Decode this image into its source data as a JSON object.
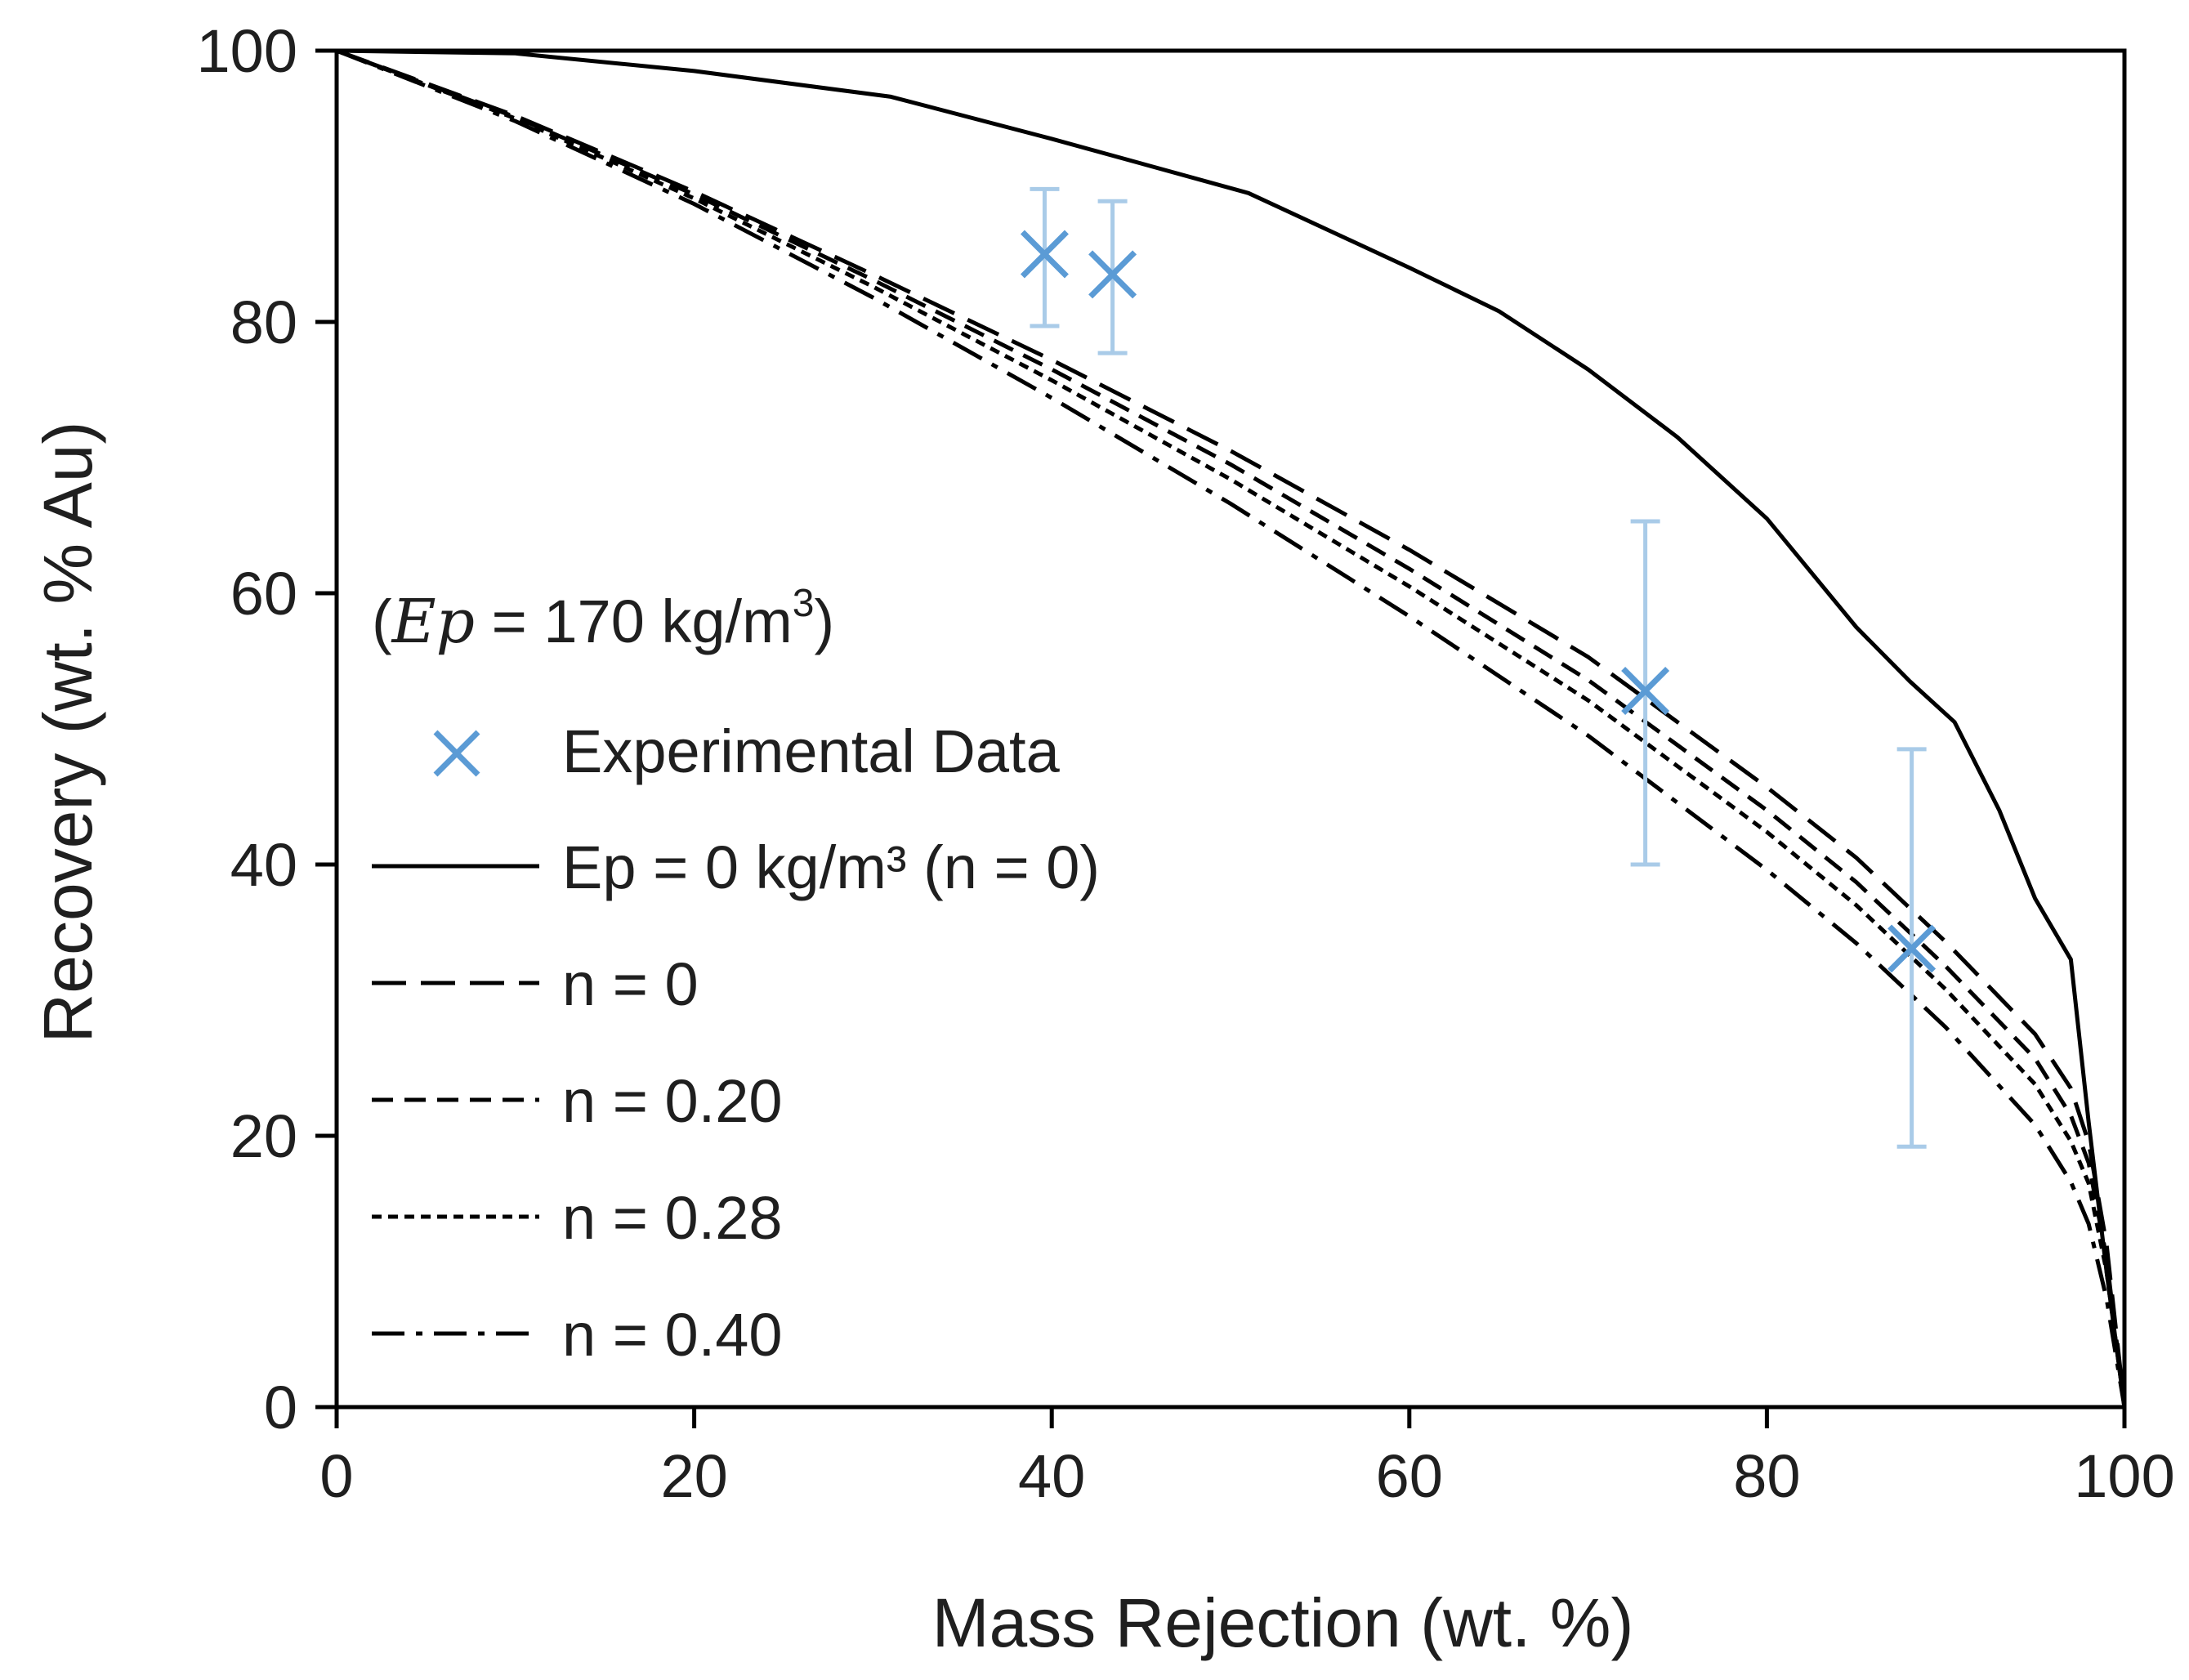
{
  "chart_data": {
    "type": "line",
    "title": "",
    "xlabel": "Mass Rejection (wt. %)",
    "ylabel": "Recovery (wt. % Au)",
    "xlim": [
      0,
      100
    ],
    "ylim": [
      0,
      100
    ],
    "xticks": [
      "0",
      "20",
      "40",
      "60",
      "80",
      "100"
    ],
    "yticks": [
      "0",
      "20",
      "40",
      "60",
      "80",
      "100"
    ],
    "grid": false,
    "legend_position": "left",
    "annotation": {
      "open": "(",
      "var": "Ep",
      "text": " = 170 kg/m",
      "sup": "3",
      "close": ")"
    },
    "series": [
      {
        "name": "Experimental Data",
        "kind": "scatter",
        "marker": "x",
        "color": "#5b9bd5",
        "points": [
          {
            "x": 39.6,
            "y": 85.0,
            "err_low": 79.7,
            "err_high": 89.8
          },
          {
            "x": 43.4,
            "y": 83.5,
            "err_low": 77.7,
            "err_high": 88.9
          },
          {
            "x": 73.2,
            "y": 52.8,
            "err_low": 40.0,
            "err_high": 65.3
          },
          {
            "x": 88.1,
            "y": 33.8,
            "err_low": 19.2,
            "err_high": 48.5
          }
        ]
      },
      {
        "name": "Ep = 0 kg/m³ (n = 0)",
        "kind": "line",
        "dash": "solid",
        "color": "#000000",
        "x": [
          0,
          10,
          20,
          31,
          40,
          51,
          60,
          65,
          70,
          75,
          80,
          85,
          88,
          90.5,
          93,
          95,
          97,
          98,
          99,
          100
        ],
        "y": [
          100,
          99.8,
          98.5,
          96.6,
          93.5,
          89.5,
          84,
          80.8,
          76.5,
          71.5,
          65.5,
          57.5,
          53.5,
          50.5,
          44,
          37.5,
          33,
          21,
          10,
          0
        ]
      },
      {
        "name": "n = 0",
        "kind": "line",
        "dash": "long-dash",
        "color": "#000000",
        "x": [
          0,
          10,
          20,
          30,
          40,
          50,
          60,
          70,
          80,
          85,
          90,
          95,
          97,
          98,
          99,
          100
        ],
        "y": [
          100,
          95.2,
          89.6,
          83.5,
          77.2,
          70.5,
          63.2,
          55.3,
          45.7,
          40.5,
          34.3,
          27.5,
          23.5,
          19.5,
          12,
          0
        ]
      },
      {
        "name": "n = 0.20",
        "kind": "line",
        "dash": "dash",
        "color": "#000000",
        "x": [
          0,
          10,
          20,
          30,
          40,
          50,
          60,
          70,
          80,
          85,
          90,
          95,
          97,
          98,
          99,
          100
        ],
        "y": [
          100,
          95.1,
          89.4,
          83.1,
          76.5,
          69.5,
          61.8,
          53.6,
          44.0,
          38.7,
          32.5,
          25.7,
          21.5,
          18,
          11,
          0
        ]
      },
      {
        "name": "n = 0.28",
        "kind": "line",
        "dash": "short-dash",
        "color": "#000000",
        "x": [
          0,
          10,
          20,
          30,
          40,
          50,
          60,
          70,
          80,
          85,
          90,
          95,
          97,
          98,
          99,
          100
        ],
        "y": [
          100,
          95.0,
          89.1,
          82.6,
          75.7,
          68.4,
          60.5,
          52.1,
          42.4,
          37.0,
          30.8,
          23.8,
          19.6,
          16.5,
          10,
          0
        ]
      },
      {
        "name": "n = 0.40",
        "kind": "line",
        "dash": "dash-dot",
        "color": "#000000",
        "x": [
          0,
          10,
          20,
          30,
          40,
          50,
          60,
          70,
          80,
          85,
          90,
          95,
          97,
          98,
          99,
          100
        ],
        "y": [
          100,
          94.8,
          88.7,
          81.8,
          74.4,
          66.6,
          58.3,
          49.5,
          39.6,
          34.2,
          28.0,
          20.8,
          16.6,
          13.5,
          8,
          0
        ]
      }
    ]
  }
}
